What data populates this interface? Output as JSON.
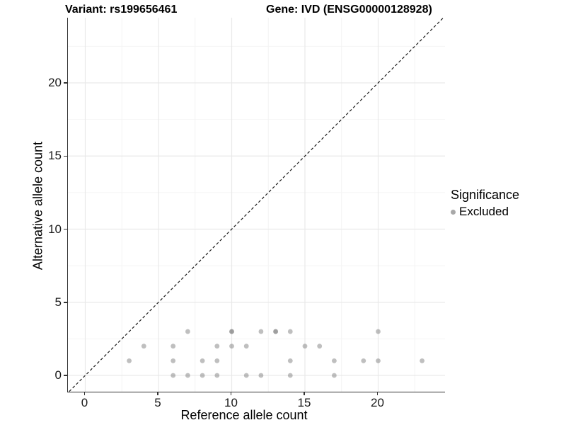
{
  "chart_data": {
    "type": "scatter",
    "title_left": "Variant: rs199656461",
    "title_right": "Gene: IVD (ENSG00000128928)",
    "xlabel": "Reference allele count",
    "ylabel": "Alternative allele count",
    "x_ticks": [
      0,
      5,
      10,
      15,
      20
    ],
    "y_ticks": [
      0,
      5,
      10,
      15,
      20
    ],
    "x_minor": [
      2.5,
      7.5,
      12.5,
      17.5,
      22.5
    ],
    "y_minor": [
      2.5,
      7.5,
      12.5,
      17.5,
      22.5
    ],
    "xlim": [
      -1.2,
      24.6
    ],
    "ylim": [
      -1.1,
      24.5
    ],
    "grid": "on",
    "identity_line": {
      "type": "dashed",
      "equation": "y = x",
      "color": "#1a1a1a"
    },
    "point_color": "#808080",
    "point_opacity": 0.5,
    "major_grid_color": "#e9e9e9",
    "minor_grid_color": "#f4f4f4",
    "legend": {
      "title": "Significance",
      "position": "right",
      "items": [
        {
          "label": "Excluded",
          "color": "#a8a8a8"
        }
      ]
    },
    "points": [
      [
        3,
        1
      ],
      [
        4,
        2
      ],
      [
        6,
        0
      ],
      [
        6,
        1
      ],
      [
        6,
        2
      ],
      [
        7,
        0
      ],
      [
        7,
        3
      ],
      [
        8,
        0
      ],
      [
        8,
        1
      ],
      [
        9,
        0
      ],
      [
        9,
        1
      ],
      [
        9,
        2
      ],
      [
        10,
        2
      ],
      [
        10,
        3
      ],
      [
        10,
        3
      ],
      [
        11,
        0
      ],
      [
        11,
        2
      ],
      [
        12,
        0
      ],
      [
        12,
        3
      ],
      [
        13,
        3
      ],
      [
        13,
        3
      ],
      [
        14,
        0
      ],
      [
        14,
        1
      ],
      [
        14,
        3
      ],
      [
        15,
        2
      ],
      [
        16,
        2
      ],
      [
        17,
        0
      ],
      [
        17,
        1
      ],
      [
        19,
        1
      ],
      [
        20,
        1
      ],
      [
        20,
        3
      ],
      [
        23,
        1
      ]
    ]
  }
}
